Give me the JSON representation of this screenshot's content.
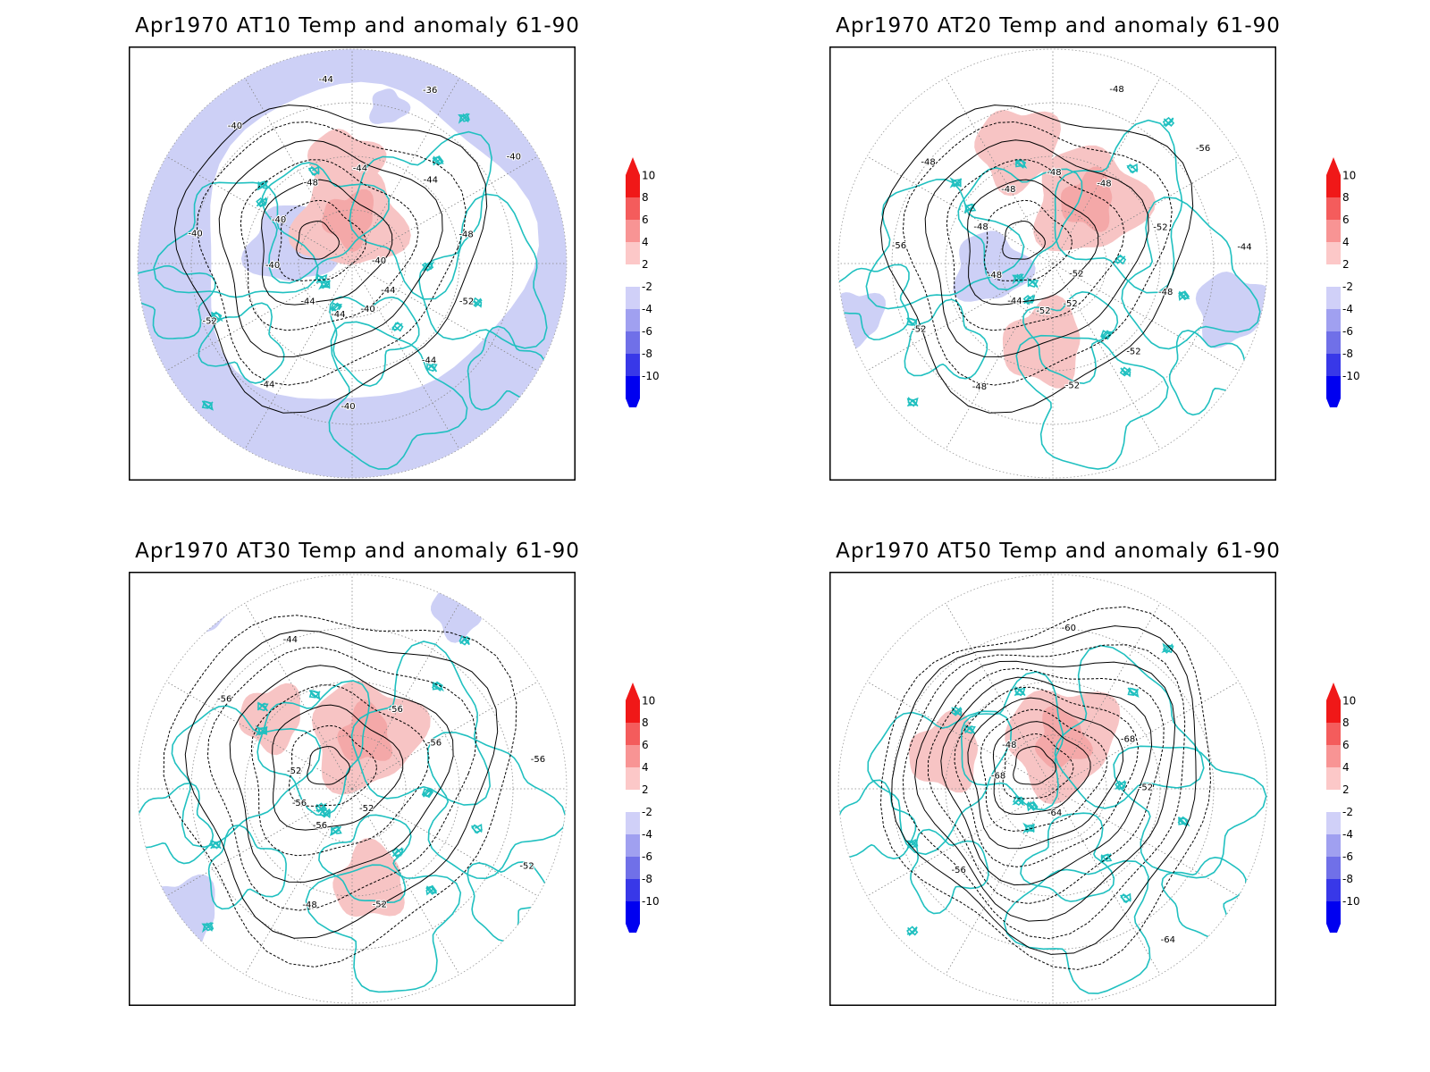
{
  "panels": [
    {
      "title": "Apr1970 AT10 Temp and anomaly 61-90",
      "contour_labels": [
        "-40",
        "-44",
        "-44",
        "-44",
        "-40",
        "-40",
        "-44",
        "-48",
        "-52",
        "-52",
        "-36",
        "-40",
        "-40",
        "-48",
        "-44",
        "-44",
        "-44",
        "-40",
        "-44",
        "-40",
        "-40"
      ],
      "anom_pos": [
        {
          "x": -3,
          "y": -50,
          "r": 58
        },
        {
          "x": -10,
          "y": -110,
          "r": 40
        }
      ],
      "anom_neg": [
        {
          "x": -70,
          "y": -20,
          "r": 45
        },
        {
          "x": 40,
          "y": -175,
          "r": 20
        }
      ],
      "anom_ring": true
    },
    {
      "title": "Apr1970 AT20 Temp and anomaly 61-90",
      "contour_labels": [
        "-52",
        "-48",
        "-48",
        "-52",
        "-48",
        "-44",
        "-44",
        "-48",
        "-52",
        "-56",
        "-56",
        "-52",
        "-48",
        "-48",
        "-52",
        "-48",
        "-52",
        "-48",
        "-52",
        "-48"
      ],
      "anom_pos": [
        {
          "x": 40,
          "y": -70,
          "r": 60
        },
        {
          "x": -40,
          "y": -130,
          "r": 45
        },
        {
          "x": -10,
          "y": 90,
          "r": 45
        }
      ],
      "anom_neg": [
        {
          "x": -70,
          "y": 5,
          "r": 40
        },
        {
          "x": 200,
          "y": 50,
          "r": 40
        },
        {
          "x": -220,
          "y": 60,
          "r": 30
        }
      ],
      "anom_ring": false
    },
    {
      "title": "Apr1970 AT30 Temp and anomaly 61-90",
      "contour_labels": [
        "-52",
        "-52",
        "-56",
        "-48",
        "-44",
        "-52",
        "-56",
        "-56",
        "-52",
        "-56",
        "-56",
        "-56"
      ],
      "anom_pos": [
        {
          "x": 15,
          "y": -60,
          "r": 60
        },
        {
          "x": -90,
          "y": -80,
          "r": 35
        },
        {
          "x": 20,
          "y": 105,
          "r": 40
        }
      ],
      "anom_neg": [
        {
          "x": -170,
          "y": -200,
          "r": 30
        },
        {
          "x": 120,
          "y": -200,
          "r": 30
        },
        {
          "x": -190,
          "y": 140,
          "r": 40
        }
      ],
      "anom_ring": false
    },
    {
      "title": "Apr1970 AT50 Temp and anomaly 61-90",
      "contour_labels": [
        "-64",
        "-48",
        "-52",
        "-56",
        "-60",
        "-64",
        "-68",
        "-68"
      ],
      "anom_pos": [
        {
          "x": 10,
          "y": -55,
          "r": 60
        },
        {
          "x": -120,
          "y": -40,
          "r": 40
        }
      ],
      "anom_neg": [],
      "anom_ring": false
    }
  ],
  "colorbar": {
    "labels": [
      "10",
      "8",
      "6",
      "4",
      "2",
      "-2",
      "-4",
      "-6",
      "-8",
      "-10"
    ],
    "colors": [
      "#f01818",
      "#f45c5c",
      "#f89494",
      "#fcc8c8",
      "#ffffff",
      "#d0d0f8",
      "#a0a0f0",
      "#7070e8",
      "#3838e8",
      "#0000f0"
    ]
  },
  "colors": {
    "coast": "#20c0c0",
    "contour": "#000000",
    "pos_anom": "#f7c4c4",
    "neg_anom": "#cdd0f6"
  }
}
